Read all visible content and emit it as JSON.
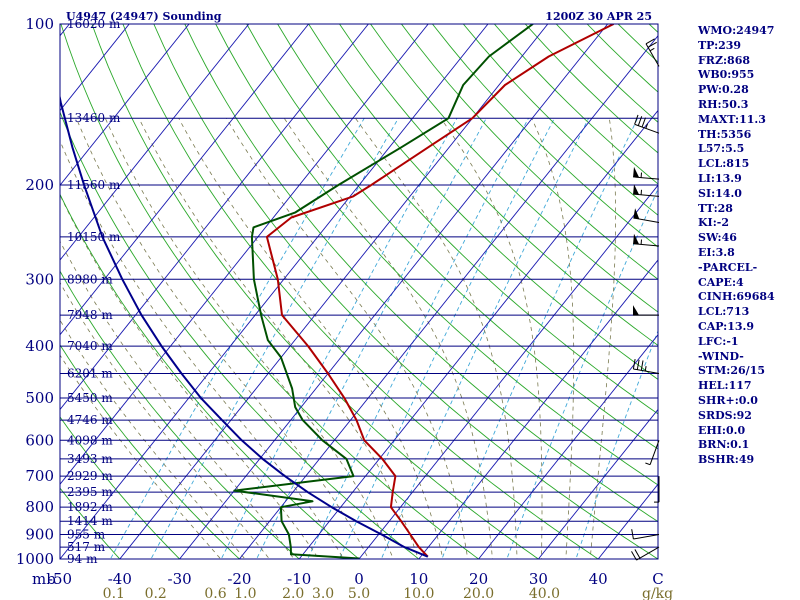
{
  "header": {
    "station_title": "U4947 (24947) Sounding",
    "time_title": "1200Z 30 APR 25"
  },
  "axis": {
    "pressure_unit": "mb",
    "mixing_unit": "g/kg"
  },
  "chart_data": {
    "type": "line",
    "subtype": "skew-t log-p",
    "x_unit": "°C",
    "y_unit": "mb",
    "y_scale": "log",
    "ylim": [
      1000,
      100
    ],
    "xlim_at_bottom": [
      -50,
      50
    ],
    "pressure_ticks": [
      100,
      200,
      300,
      400,
      500,
      600,
      700,
      800,
      900,
      1000
    ],
    "temperature_ticks": [
      -50,
      -40,
      -30,
      -20,
      -10,
      0,
      10,
      20,
      30,
      40,
      50
    ],
    "temperature_tick_labels": [
      "-50",
      "-40",
      "-30",
      "-20",
      "-10",
      "0",
      "10",
      "20",
      "30",
      "40",
      "C"
    ],
    "mixing_ratio_ticks": [
      {
        "label": "0.1",
        "t": -41
      },
      {
        "label": "0.2",
        "t": -34
      },
      {
        "label": "0.6",
        "t": -24
      },
      {
        "label": "1.0",
        "t": -19
      },
      {
        "label": "2.0",
        "t": -11
      },
      {
        "label": "3.0",
        "t": -6
      },
      {
        "label": "5.0",
        "t": 0
      },
      {
        "label": "10.0",
        "t": 10
      },
      {
        "label": "20.0",
        "t": 20
      },
      {
        "label": "40.0",
        "t": 31
      }
    ],
    "height_levels": [
      {
        "p": 100,
        "label": "16020 m"
      },
      {
        "p": 150,
        "label": "13460 m"
      },
      {
        "p": 200,
        "label": "11560 m"
      },
      {
        "p": 250,
        "label": "10150 m"
      },
      {
        "p": 300,
        "label": "8980 m"
      },
      {
        "p": 350,
        "label": "7948 m"
      },
      {
        "p": 400,
        "label": "7040 m"
      },
      {
        "p": 450,
        "label": "6201 m"
      },
      {
        "p": 500,
        "label": "5450 m"
      },
      {
        "p": 550,
        "label": "4746 m"
      },
      {
        "p": 600,
        "label": "4098 m"
      },
      {
        "p": 650,
        "label": "3493 m"
      },
      {
        "p": 700,
        "label": "2929 m"
      },
      {
        "p": 750,
        "label": "2395 m"
      },
      {
        "p": 800,
        "label": "1892 m"
      },
      {
        "p": 850,
        "label": "1414 m"
      },
      {
        "p": 900,
        "label": "955 m"
      },
      {
        "p": 950,
        "label": "517 m"
      },
      {
        "p": 1000,
        "label": "94 m"
      }
    ],
    "series": [
      {
        "role": "temperature",
        "color": "#b00000",
        "points": [
          {
            "p": 990,
            "t": 11.2
          },
          {
            "p": 950,
            "t": 8.4
          },
          {
            "p": 900,
            "t": 5.3
          },
          {
            "p": 850,
            "t": 2.0
          },
          {
            "p": 800,
            "t": -1.6
          },
          {
            "p": 750,
            "t": -3.3
          },
          {
            "p": 700,
            "t": -5.0
          },
          {
            "p": 650,
            "t": -9.5
          },
          {
            "p": 600,
            "t": -15.0
          },
          {
            "p": 550,
            "t": -19.0
          },
          {
            "p": 500,
            "t": -24.0
          },
          {
            "p": 450,
            "t": -30.0
          },
          {
            "p": 400,
            "t": -37.0
          },
          {
            "p": 350,
            "t": -45.5
          },
          {
            "p": 300,
            "t": -51.0
          },
          {
            "p": 250,
            "t": -58.5
          },
          {
            "p": 230,
            "t": -57.0
          },
          {
            "p": 210,
            "t": -49.5
          },
          {
            "p": 200,
            "t": -48.0
          },
          {
            "p": 170,
            "t": -43.5
          },
          {
            "p": 150,
            "t": -40.0
          },
          {
            "p": 130,
            "t": -39.0
          },
          {
            "p": 115,
            "t": -35.5
          },
          {
            "p": 100,
            "t": -29.0
          }
        ]
      },
      {
        "role": "dewpoint",
        "color": "#005000",
        "points": [
          {
            "p": 998,
            "t": 0.0
          },
          {
            "p": 980,
            "t": -12.0
          },
          {
            "p": 950,
            "t": -13.0
          },
          {
            "p": 900,
            "t": -15.0
          },
          {
            "p": 850,
            "t": -18.0
          },
          {
            "p": 800,
            "t": -20.0
          },
          {
            "p": 780,
            "t": -15.5
          },
          {
            "p": 745,
            "t": -30.0
          },
          {
            "p": 700,
            "t": -12.0
          },
          {
            "p": 650,
            "t": -15.5
          },
          {
            "p": 600,
            "t": -22.0
          },
          {
            "p": 550,
            "t": -28.0
          },
          {
            "p": 520,
            "t": -31.0
          },
          {
            "p": 480,
            "t": -34.0
          },
          {
            "p": 420,
            "t": -40.0
          },
          {
            "p": 390,
            "t": -44.5
          },
          {
            "p": 350,
            "t": -49.0
          },
          {
            "p": 300,
            "t": -55.0
          },
          {
            "p": 250,
            "t": -61.0
          },
          {
            "p": 240,
            "t": -62.0
          },
          {
            "p": 225,
            "t": -57.0
          },
          {
            "p": 200,
            "t": -53.5
          },
          {
            "p": 170,
            "t": -48.0
          },
          {
            "p": 150,
            "t": -44.0
          },
          {
            "p": 130,
            "t": -46.0
          },
          {
            "p": 115,
            "t": -45.5
          },
          {
            "p": 100,
            "t": -42.5
          }
        ]
      },
      {
        "role": "parcel",
        "color": "#00008c",
        "points": [
          {
            "p": 990,
            "t": 11.2
          },
          {
            "p": 950,
            "t": 6.0
          },
          {
            "p": 900,
            "t": 0.5
          },
          {
            "p": 850,
            "t": -5.5
          },
          {
            "p": 800,
            "t": -11.5
          },
          {
            "p": 750,
            "t": -17.5
          },
          {
            "p": 700,
            "t": -23.5
          },
          {
            "p": 650,
            "t": -29.5
          },
          {
            "p": 600,
            "t": -35.5
          },
          {
            "p": 550,
            "t": -41.5
          },
          {
            "p": 500,
            "t": -48.0
          },
          {
            "p": 450,
            "t": -54.5
          },
          {
            "p": 400,
            "t": -61.5
          },
          {
            "p": 350,
            "t": -69.0
          },
          {
            "p": 300,
            "t": -77.0
          },
          {
            "p": 250,
            "t": -86.0
          },
          {
            "p": 200,
            "t": -96.0
          },
          {
            "p": 170,
            "t": -103.0
          },
          {
            "p": 140,
            "t": -111.0
          },
          {
            "p": 120,
            "t": -117.0
          }
        ]
      }
    ],
    "wind_barbs": [
      {
        "p": 950,
        "dir": 240,
        "kt": 20
      },
      {
        "p": 900,
        "dir": 260,
        "kt": 10
      },
      {
        "p": 700,
        "dir": 180,
        "kt": 5
      },
      {
        "p": 600,
        "dir": 200,
        "kt": 5
      },
      {
        "p": 450,
        "dir": 280,
        "kt": 35
      },
      {
        "p": 350,
        "dir": 270,
        "kt": 50
      },
      {
        "p": 260,
        "dir": 275,
        "kt": 55
      },
      {
        "p": 235,
        "dir": 280,
        "kt": 50
      },
      {
        "p": 210,
        "dir": 275,
        "kt": 55
      },
      {
        "p": 195,
        "dir": 275,
        "kt": 55
      },
      {
        "p": 160,
        "dir": 290,
        "kt": 35
      },
      {
        "p": 120,
        "dir": 330,
        "kt": 25
      }
    ]
  },
  "indices": [
    "WMO:24947",
    "TP:239",
    "FRZ:868",
    "WB0:955",
    "PW:0.28",
    "RH:50.3",
    "MAXT:11.3",
    "TH:5356",
    "L57:5.5",
    "LCL:815",
    "LI:13.9",
    "SI:14.0",
    "TT:28",
    "KI:-2",
    "SW:46",
    "EI:3.8",
    "-PARCEL-",
    "CAPE:4",
    "CINH:69684",
    "LCL:713",
    "CAP:13.9",
    "LFC:-1",
    "-WIND-",
    "STM:26/15",
    "HEL:117",
    "SHR+:0.0",
    "SRDS:92",
    "EHI:0.0",
    "BRN:0.1",
    "BSHR:49"
  ]
}
